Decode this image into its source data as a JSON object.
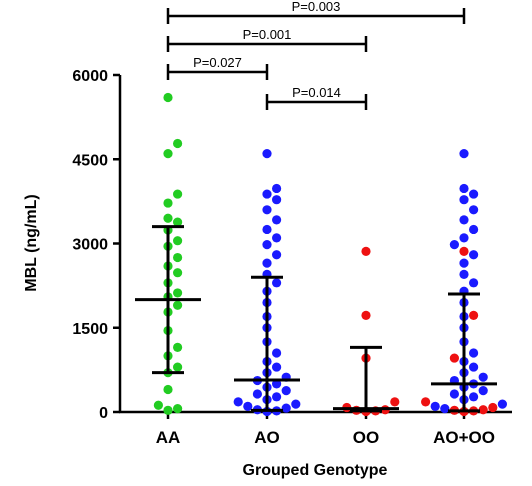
{
  "chart_data": {
    "type": "scatter",
    "xlabel": "Grouped Genotype",
    "ylabel": "MBL (ng/mL)",
    "ylim": [
      0,
      6000
    ],
    "yticks": [
      0,
      1500,
      3000,
      4500,
      6000
    ],
    "categories": [
      "AA",
      "AO",
      "OO",
      "AO+OO"
    ],
    "colors": {
      "A_allele_green": "#22cc22",
      "AO_blue": "#1a1aff",
      "OO_red": "#ee1111"
    },
    "groups": [
      {
        "category": "AA",
        "median": 2000,
        "q1": 700,
        "q3": 3300,
        "points": [
          {
            "v": 5600,
            "c": "green"
          },
          {
            "v": 4780,
            "c": "green"
          },
          {
            "v": 4600,
            "c": "green"
          },
          {
            "v": 3880,
            "c": "green"
          },
          {
            "v": 3720,
            "c": "green"
          },
          {
            "v": 3450,
            "c": "green"
          },
          {
            "v": 3380,
            "c": "green"
          },
          {
            "v": 3240,
            "c": "green"
          },
          {
            "v": 3050,
            "c": "green"
          },
          {
            "v": 2950,
            "c": "green"
          },
          {
            "v": 2750,
            "c": "green"
          },
          {
            "v": 2600,
            "c": "green"
          },
          {
            "v": 2480,
            "c": "green"
          },
          {
            "v": 2300,
            "c": "green"
          },
          {
            "v": 2120,
            "c": "green"
          },
          {
            "v": 2050,
            "c": "green"
          },
          {
            "v": 1900,
            "c": "green"
          },
          {
            "v": 1780,
            "c": "green"
          },
          {
            "v": 1450,
            "c": "green"
          },
          {
            "v": 1150,
            "c": "green"
          },
          {
            "v": 1000,
            "c": "green"
          },
          {
            "v": 800,
            "c": "green"
          },
          {
            "v": 700,
            "c": "green"
          },
          {
            "v": 400,
            "c": "green"
          },
          {
            "v": 120,
            "c": "green"
          },
          {
            "v": 60,
            "c": "green"
          },
          {
            "v": 30,
            "c": "green"
          }
        ]
      },
      {
        "category": "AO",
        "median": 570,
        "q1": 30,
        "q3": 2400,
        "points": [
          {
            "v": 4600,
            "c": "blue"
          },
          {
            "v": 3980,
            "c": "blue"
          },
          {
            "v": 3880,
            "c": "blue"
          },
          {
            "v": 3780,
            "c": "blue"
          },
          {
            "v": 3600,
            "c": "blue"
          },
          {
            "v": 3420,
            "c": "blue"
          },
          {
            "v": 3250,
            "c": "blue"
          },
          {
            "v": 3100,
            "c": "blue"
          },
          {
            "v": 2980,
            "c": "blue"
          },
          {
            "v": 2800,
            "c": "blue"
          },
          {
            "v": 2650,
            "c": "blue"
          },
          {
            "v": 2450,
            "c": "blue"
          },
          {
            "v": 2300,
            "c": "blue"
          },
          {
            "v": 2150,
            "c": "blue"
          },
          {
            "v": 1950,
            "c": "blue"
          },
          {
            "v": 1700,
            "c": "blue"
          },
          {
            "v": 1500,
            "c": "blue"
          },
          {
            "v": 1250,
            "c": "blue"
          },
          {
            "v": 1050,
            "c": "blue"
          },
          {
            "v": 900,
            "c": "blue"
          },
          {
            "v": 800,
            "c": "blue"
          },
          {
            "v": 700,
            "c": "blue"
          },
          {
            "v": 620,
            "c": "blue"
          },
          {
            "v": 560,
            "c": "blue"
          },
          {
            "v": 500,
            "c": "blue"
          },
          {
            "v": 440,
            "c": "blue"
          },
          {
            "v": 380,
            "c": "blue"
          },
          {
            "v": 320,
            "c": "blue"
          },
          {
            "v": 270,
            "c": "blue"
          },
          {
            "v": 220,
            "c": "blue"
          },
          {
            "v": 180,
            "c": "blue"
          },
          {
            "v": 140,
            "c": "blue"
          },
          {
            "v": 100,
            "c": "blue"
          },
          {
            "v": 70,
            "c": "blue"
          },
          {
            "v": 40,
            "c": "blue"
          },
          {
            "v": 20,
            "c": "blue"
          },
          {
            "v": 10,
            "c": "blue"
          }
        ]
      },
      {
        "category": "OO",
        "median": 60,
        "q1": 20,
        "q3": 1150,
        "points": [
          {
            "v": 2860,
            "c": "red"
          },
          {
            "v": 1720,
            "c": "red"
          },
          {
            "v": 960,
            "c": "red"
          },
          {
            "v": 180,
            "c": "red"
          },
          {
            "v": 80,
            "c": "red"
          },
          {
            "v": 40,
            "c": "red"
          },
          {
            "v": 30,
            "c": "red"
          },
          {
            "v": 20,
            "c": "red"
          },
          {
            "v": 10,
            "c": "red"
          }
        ]
      },
      {
        "category": "AO+OO",
        "median": 500,
        "q1": 20,
        "q3": 2100,
        "points": [
          {
            "v": 4600,
            "c": "blue"
          },
          {
            "v": 3980,
            "c": "blue"
          },
          {
            "v": 3880,
            "c": "blue"
          },
          {
            "v": 3780,
            "c": "blue"
          },
          {
            "v": 3600,
            "c": "blue"
          },
          {
            "v": 3420,
            "c": "blue"
          },
          {
            "v": 3250,
            "c": "blue"
          },
          {
            "v": 3100,
            "c": "blue"
          },
          {
            "v": 2980,
            "c": "blue"
          },
          {
            "v": 2860,
            "c": "red"
          },
          {
            "v": 2800,
            "c": "blue"
          },
          {
            "v": 2650,
            "c": "blue"
          },
          {
            "v": 2450,
            "c": "blue"
          },
          {
            "v": 2300,
            "c": "blue"
          },
          {
            "v": 2150,
            "c": "blue"
          },
          {
            "v": 1950,
            "c": "blue"
          },
          {
            "v": 1720,
            "c": "red"
          },
          {
            "v": 1700,
            "c": "blue"
          },
          {
            "v": 1500,
            "c": "blue"
          },
          {
            "v": 1250,
            "c": "blue"
          },
          {
            "v": 1050,
            "c": "blue"
          },
          {
            "v": 960,
            "c": "red"
          },
          {
            "v": 900,
            "c": "blue"
          },
          {
            "v": 800,
            "c": "blue"
          },
          {
            "v": 700,
            "c": "blue"
          },
          {
            "v": 620,
            "c": "blue"
          },
          {
            "v": 560,
            "c": "blue"
          },
          {
            "v": 500,
            "c": "blue"
          },
          {
            "v": 440,
            "c": "blue"
          },
          {
            "v": 380,
            "c": "blue"
          },
          {
            "v": 320,
            "c": "blue"
          },
          {
            "v": 270,
            "c": "blue"
          },
          {
            "v": 220,
            "c": "blue"
          },
          {
            "v": 180,
            "c": "red"
          },
          {
            "v": 140,
            "c": "blue"
          },
          {
            "v": 100,
            "c": "blue"
          },
          {
            "v": 80,
            "c": "red"
          },
          {
            "v": 60,
            "c": "blue"
          },
          {
            "v": 40,
            "c": "red"
          },
          {
            "v": 30,
            "c": "red"
          },
          {
            "v": 20,
            "c": "red"
          },
          {
            "v": 10,
            "c": "red"
          }
        ]
      }
    ],
    "comparisons": [
      {
        "from": "AA",
        "to": "AO+OO",
        "label": "P=0.003"
      },
      {
        "from": "AA",
        "to": "OO",
        "label": "P=0.001"
      },
      {
        "from": "AA",
        "to": "AO",
        "label": "P=0.027"
      },
      {
        "from": "AO",
        "to": "OO",
        "label": "P=0.014"
      }
    ]
  }
}
